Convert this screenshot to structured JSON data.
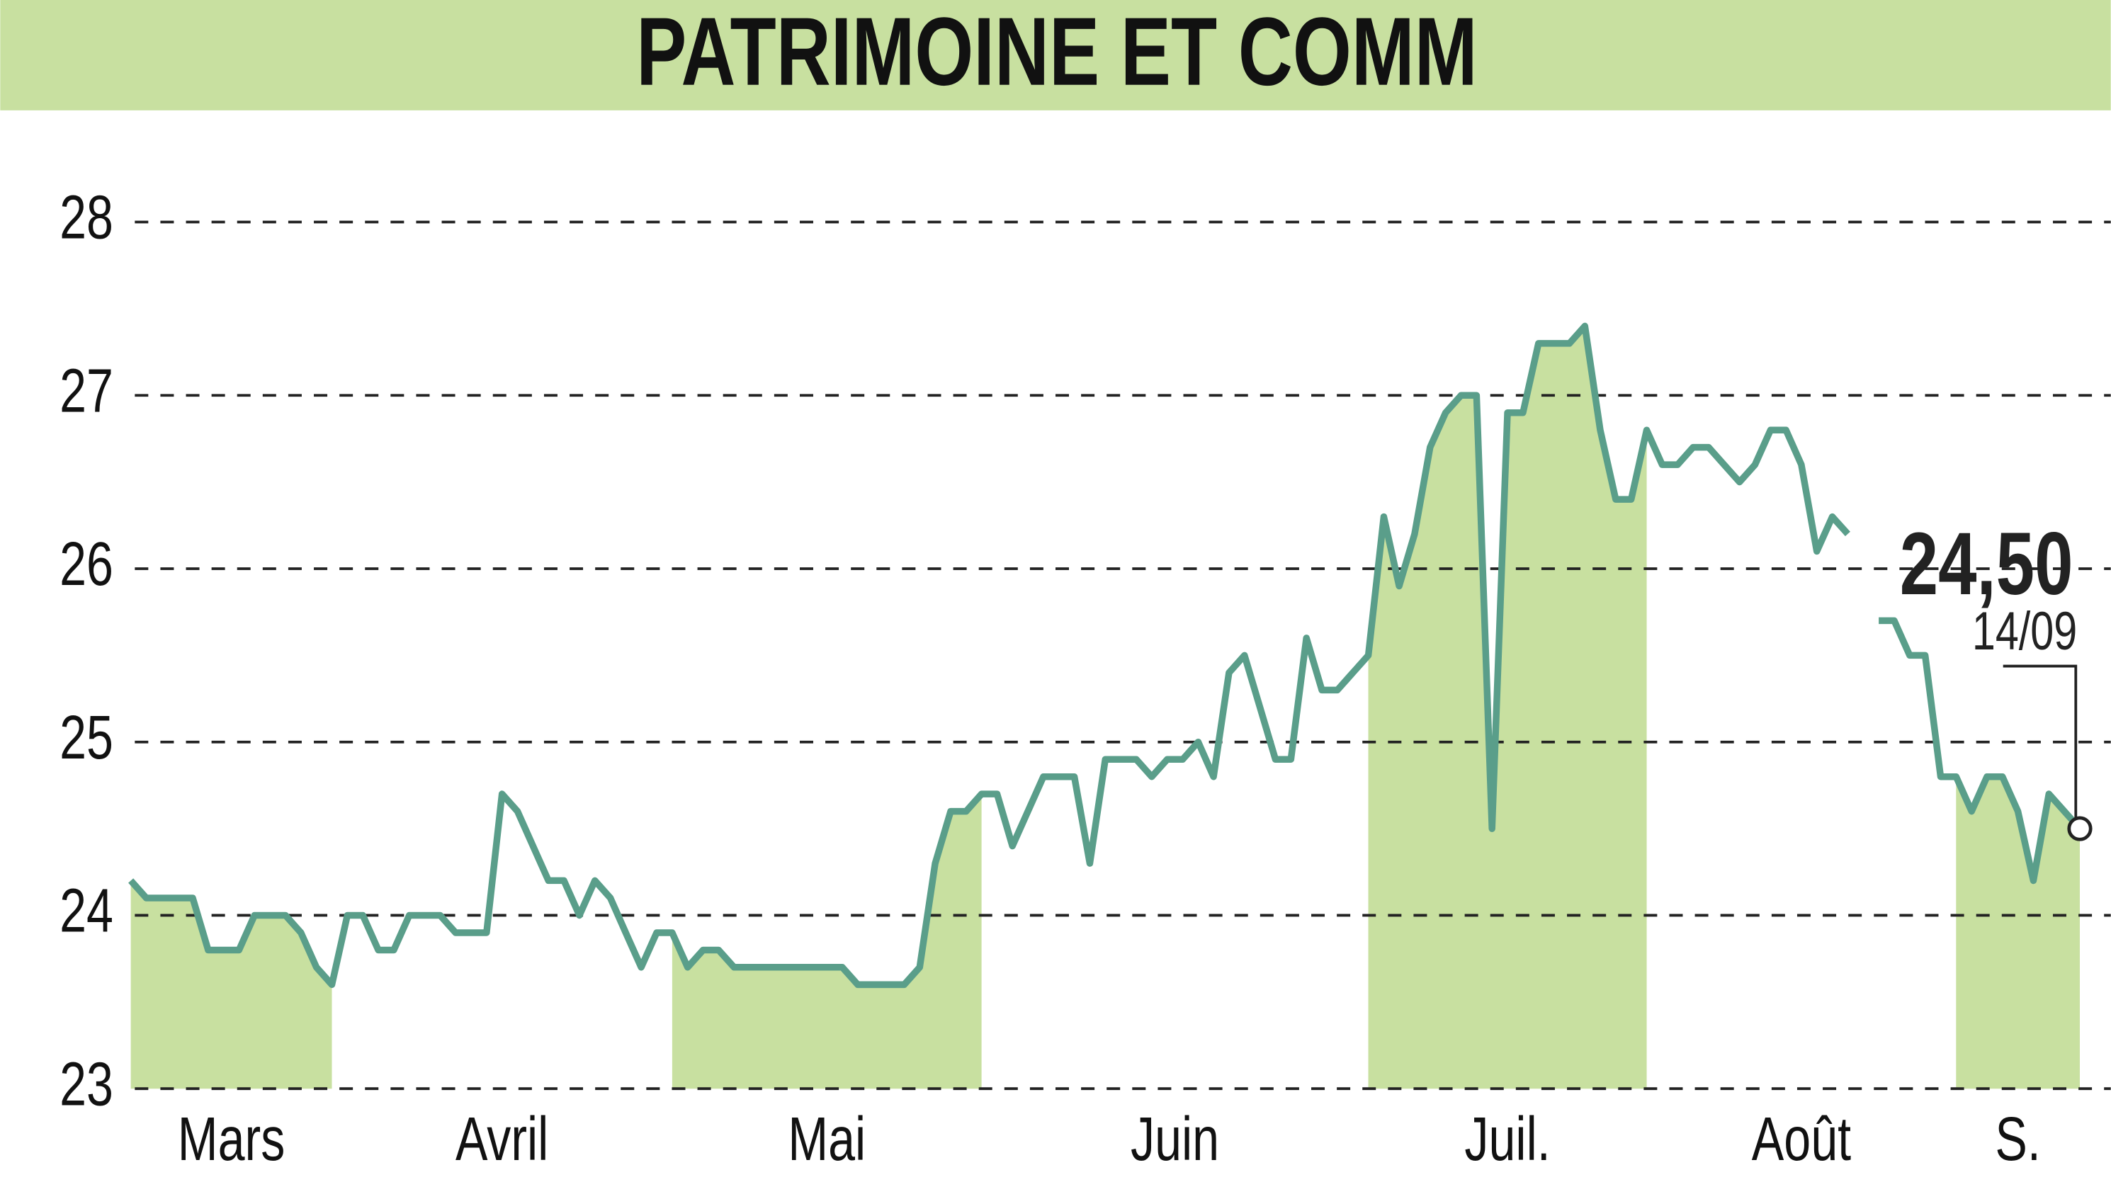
{
  "chart_data": {
    "type": "line",
    "title": "PATRIMOINE ET COMM",
    "color": "#5a9e8a",
    "fill_color": "#c8e0a0",
    "months": [
      {
        "label": "Mars",
        "values": [
          24.2,
          24.1,
          24.1,
          24.1,
          24.1,
          23.8,
          23.8,
          23.8,
          24.0,
          24.0,
          24.0,
          23.9,
          23.7,
          23.6
        ]
      },
      {
        "label": "Avril",
        "values": [
          24.0,
          24.0,
          23.8,
          23.8,
          24.0,
          24.0,
          24.0,
          23.9,
          23.9,
          23.9,
          24.7,
          24.6,
          24.4,
          24.2,
          24.2,
          24.0,
          24.2,
          24.1,
          23.9,
          23.7,
          23.9
        ]
      },
      {
        "label": "Mai",
        "values": [
          23.9,
          23.7,
          23.8,
          23.8,
          23.7,
          23.7,
          23.7,
          23.7,
          23.7,
          23.7,
          23.7,
          23.7,
          23.6,
          23.6,
          23.6,
          23.6,
          23.7,
          24.3,
          24.6,
          24.6,
          24.7
        ]
      },
      {
        "label": "Juin",
        "values": [
          24.7,
          24.4,
          24.6,
          24.8,
          24.8,
          24.8,
          24.3,
          24.9,
          24.9,
          24.9,
          24.8,
          24.9,
          24.9,
          25.0,
          24.8,
          25.4,
          25.5,
          25.2,
          24.9,
          24.9,
          25.6,
          25.3,
          25.3,
          25.4
        ]
      },
      {
        "label": "Juil.",
        "values": [
          25.5,
          26.3,
          25.9,
          26.2,
          26.7,
          26.9,
          27.0,
          27.0,
          24.5,
          26.9,
          26.9,
          27.3,
          27.3,
          27.3,
          27.4,
          26.8,
          26.4,
          26.4,
          26.8
        ]
      },
      {
        "label": "Août",
        "values": [
          26.6,
          26.6,
          26.7,
          26.7,
          26.6,
          26.5,
          26.6,
          26.8,
          26.8,
          26.6,
          26.1,
          26.3,
          26.2,
          null,
          25.7,
          25.7,
          25.5,
          25.5,
          24.8
        ]
      },
      {
        "label": "S.",
        "values": [
          24.8,
          24.6,
          24.8,
          24.8,
          24.6,
          24.2,
          24.7,
          24.6,
          24.5
        ]
      }
    ],
    "ylim": [
      23,
      28
    ],
    "yticks": [
      23,
      24,
      25,
      26,
      27,
      28
    ],
    "grid": true,
    "last_value_label": "24,50",
    "last_date": "14/09"
  }
}
